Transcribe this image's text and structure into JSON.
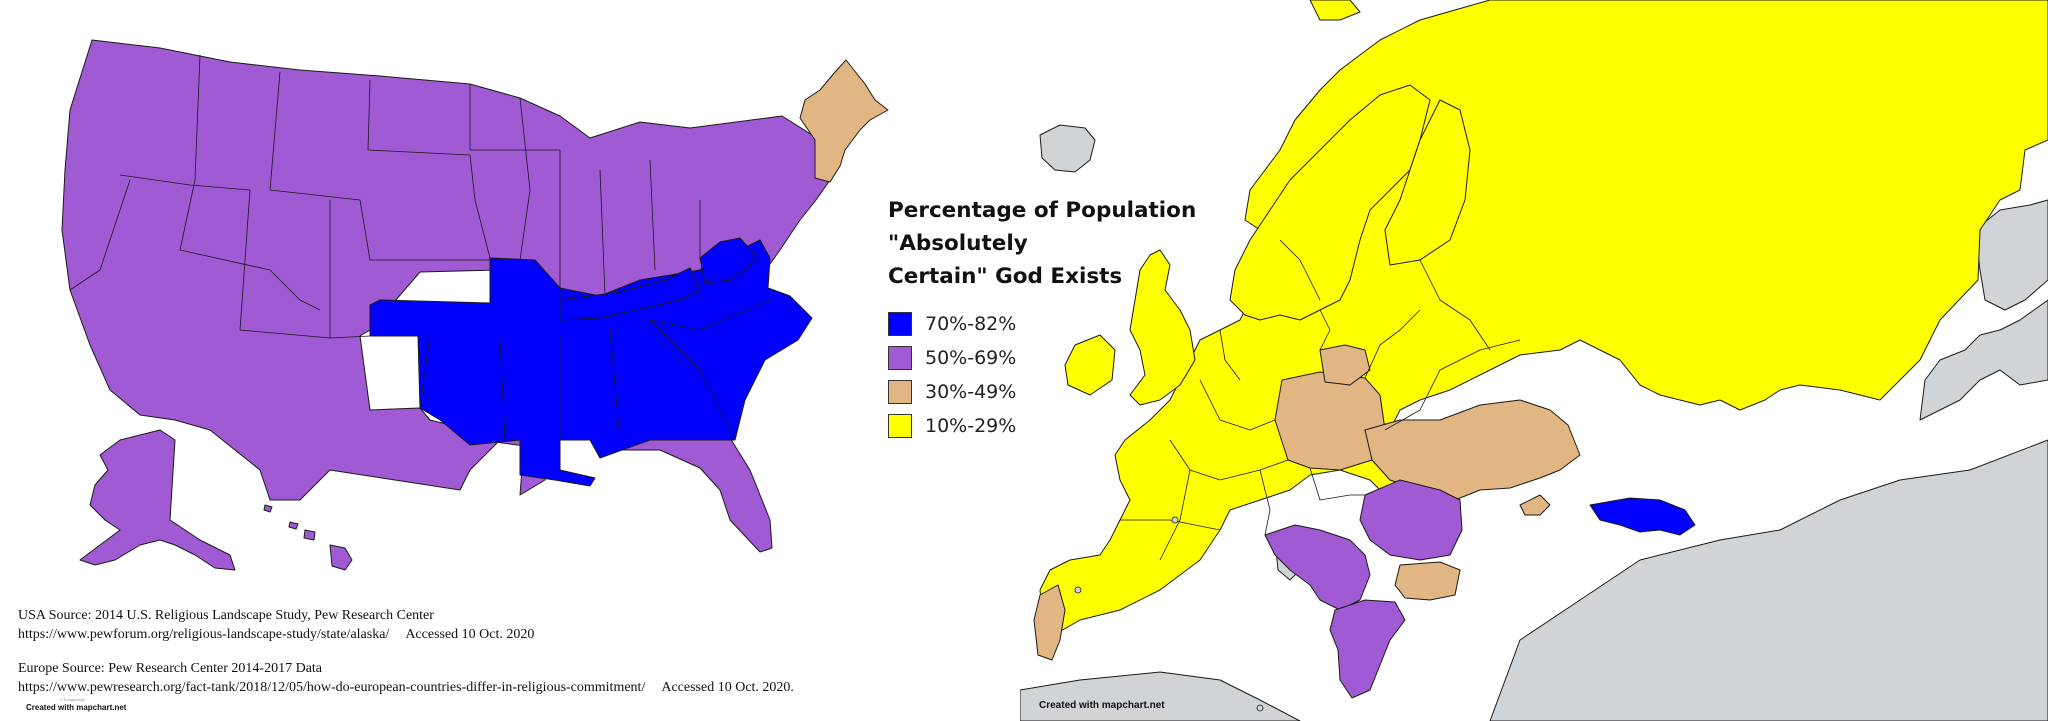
{
  "legend": {
    "title_line1": "Percentage of Population \"Absolutely",
    "title_line2": "Certain\" God Exists",
    "items": [
      {
        "label": "70%-82%",
        "color": "#0000ff"
      },
      {
        "label": "50%-69%",
        "color": "#a05ad4"
      },
      {
        "label": "30%-49%",
        "color": "#e2b682"
      },
      {
        "label": "10%-29%",
        "color": "#ffff00"
      }
    ]
  },
  "colors": {
    "no_data": "#d0d4d6",
    "border": "#1a1a1a",
    "background": "#ffffff"
  },
  "sources": {
    "usa_line1": "USA Source: 2014 U.S. Religious Landscape Study, Pew Research Center",
    "usa_url": "https://www.pewforum.org/religious-landscape-study/state/alaska/",
    "usa_accessed": "Accessed 10 Oct. 2020",
    "europe_line1": "Europe Source: Pew Research Center 2014-2017 Data",
    "europe_url": "https://www.pewresearch.org/fact-tank/2018/12/05/how-do-european-countries-differ-in-religious-commitment/",
    "europe_accessed": "Accessed 10 Oct. 2020."
  },
  "credits": {
    "left": "Created with mapchart.net",
    "center": "Created with mapchart.net",
    "small": "©Tholgdrang0"
  }
}
